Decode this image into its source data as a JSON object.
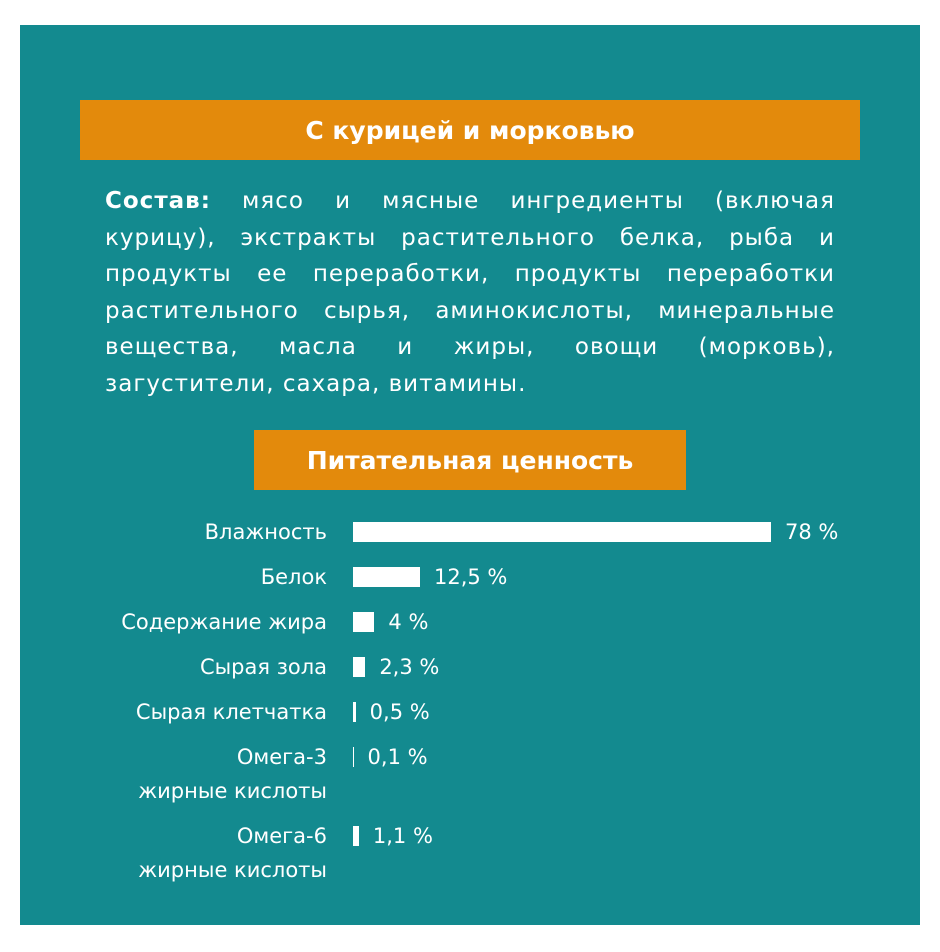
{
  "heading": "С курицей и морковью",
  "composition": {
    "label": "Состав:",
    "text": "мясо и мясные ингредиенты (включая курицу), экстракты растительного белка, рыба и продукты ее переработки, продукты переработки растительного сырья, аминокислоты, минеральные вещества, масла и жиры, овощи (морковь), загустители, сахара, витамины."
  },
  "chart_data": {
    "type": "bar",
    "orientation": "horizontal",
    "title": "Питательная ценность",
    "categories": [
      "Влажность",
      "Белок",
      "Содержание жира",
      "Сырая зола",
      "Сырая клетчатка",
      "Омега-3\nжирные кислоты",
      "Омега-6\nжирные кислоты"
    ],
    "values": [
      78,
      12.5,
      4,
      2.3,
      0.5,
      0.1,
      1.1
    ],
    "value_labels": [
      "78 %",
      "12,5 %",
      "4 %",
      "2,3 %",
      "0,5 %",
      "0,1 %",
      "1,1 %"
    ],
    "color": "#ffffff"
  }
}
